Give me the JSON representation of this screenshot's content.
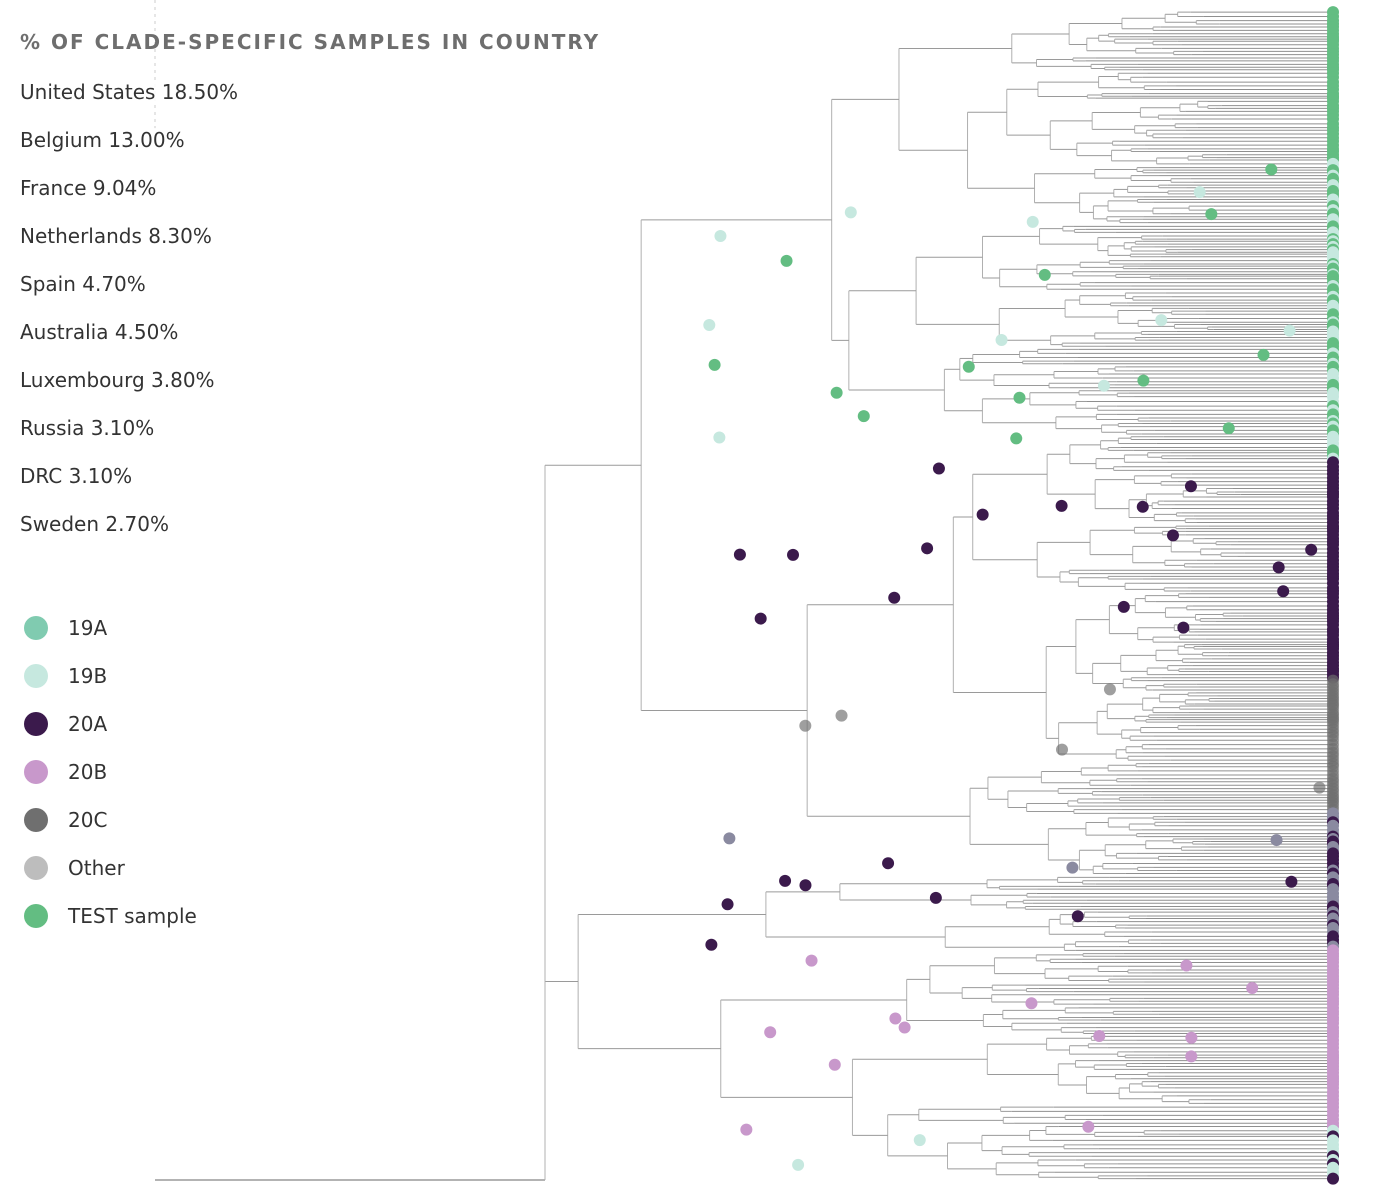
{
  "panel": {
    "title": "% OF CLADE-SPECIFIC SAMPLES IN COUNTRY",
    "countries": [
      {
        "name": "United States",
        "share": "18.50%"
      },
      {
        "name": "Belgium",
        "share": "13.00%"
      },
      {
        "name": "France",
        "share": "9.04%"
      },
      {
        "name": "Netherlands",
        "share": "8.30%"
      },
      {
        "name": "Spain",
        "share": "4.70%"
      },
      {
        "name": "Australia",
        "share": "4.50%"
      },
      {
        "name": "Luxembourg",
        "share": "3.80%"
      },
      {
        "name": "Russia",
        "share": "3.10%"
      },
      {
        "name": "DRC",
        "share": "3.10%"
      },
      {
        "name": "Sweden",
        "share": "2.70%"
      }
    ]
  },
  "legend": [
    {
      "label": "19A",
      "color": "#80cbb0"
    },
    {
      "label": "19B",
      "color": "#c6e8df"
    },
    {
      "label": "20A",
      "color": "#3b1a4c"
    },
    {
      "label": "20B",
      "color": "#c898cb"
    },
    {
      "label": "20C",
      "color": "#6f6f6f"
    },
    {
      "label": "Other",
      "color": "#bdbdbd"
    },
    {
      "label": "TEST sample",
      "color": "#63bd82"
    }
  ]
}
